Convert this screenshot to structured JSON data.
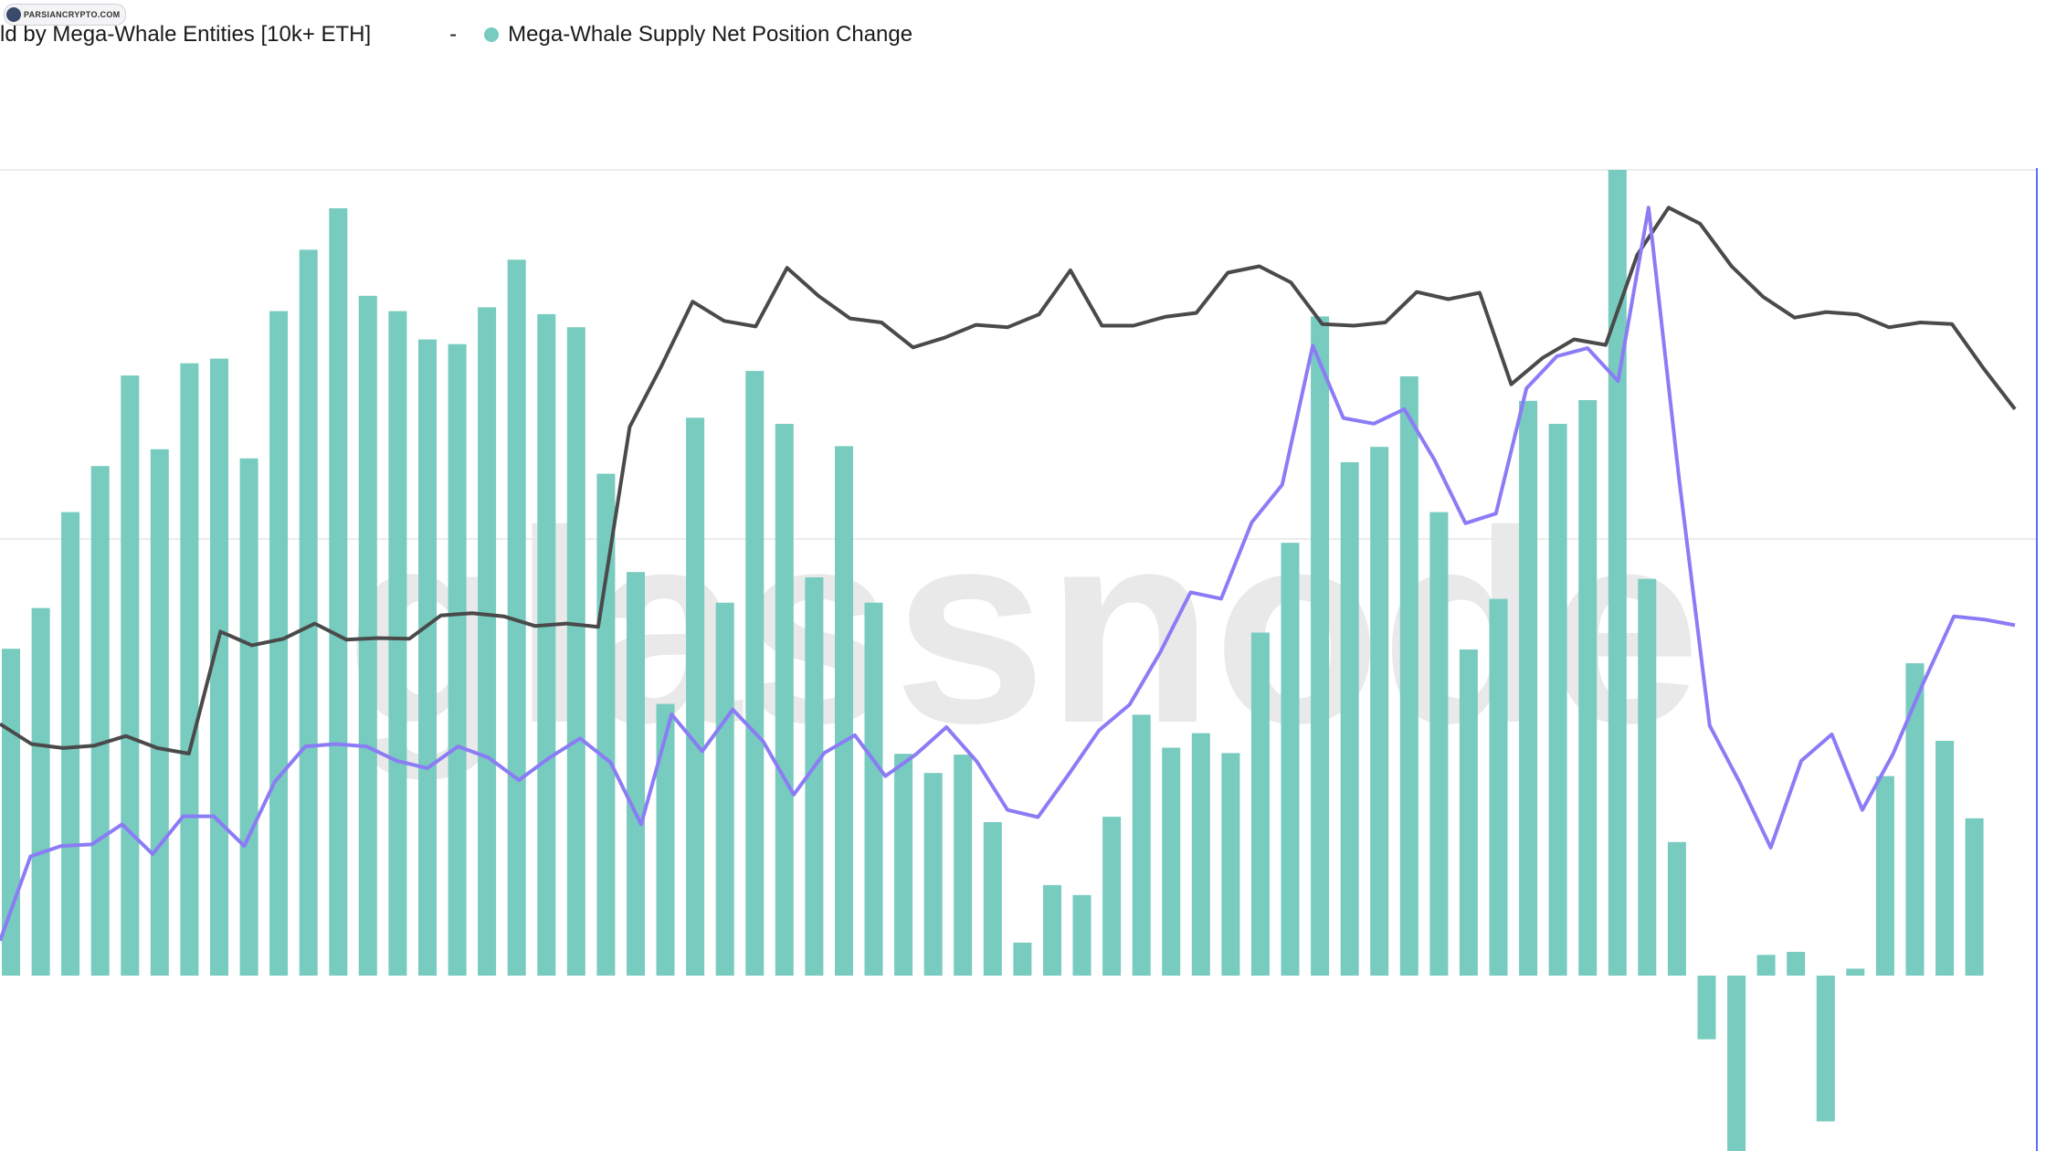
{
  "legend": {
    "series_a": "ld by Mega-Whale Entities [10k+ ETH]",
    "separator": "-",
    "series_b": "Mega-Whale Supply Net Position Change"
  },
  "badge_text": "PARSIANCRYPTO.COM",
  "watermark": "glassnode",
  "colors": {
    "bars": "#77cbbf",
    "black_line": "#4a4a4a",
    "purple_line": "#8b7cf6",
    "grid": "#ececec",
    "right_axis": "#5b6cff"
  },
  "chart_data": {
    "type": "bar",
    "note_axes": "no axis ticks visible; values are relative (bar zero line at 0)",
    "bar_zero": 0,
    "ylim_bars": [
      -230,
      1050
    ],
    "ylim_lines": [
      0,
      100
    ],
    "series": [
      {
        "name": "Mega-Whale Supply Net Position Change",
        "kind": "bar",
        "values": [
          426,
          479,
          604,
          664,
          782,
          686,
          798,
          804,
          674,
          866,
          946,
          1000,
          886,
          866,
          829,
          823,
          871,
          933,
          862,
          845,
          654,
          526,
          354,
          727,
          486,
          788,
          719,
          519,
          690,
          486,
          289,
          264,
          288,
          200,
          43,
          118,
          105,
          207,
          340,
          297,
          316,
          290,
          447,
          564,
          859,
          669,
          689,
          781,
          604,
          425,
          491,
          749,
          719,
          750,
          1050,
          517,
          174,
          -83,
          -231,
          27,
          31,
          -190,
          9,
          260,
          407,
          306,
          205
        ]
      },
      {
        "name": "ld by Mega-Whale Entities [10k+ ETH]",
        "kind": "line",
        "values": [
          31,
          28.5,
          28,
          28.3,
          29.5,
          28,
          27.3,
          42.5,
          40.8,
          41.6,
          43.5,
          41.5,
          41.7,
          41.6,
          44.5,
          44.8,
          44.4,
          43.2,
          43.5,
          43.1,
          68,
          75.5,
          83.6,
          81.2,
          80.5,
          87.8,
          84.3,
          81.5,
          81,
          77.9,
          79.1,
          80.7,
          80.4,
          82,
          87.5,
          80.6,
          80.6,
          81.7,
          82.2,
          87.2,
          88,
          86,
          80.8,
          80.6,
          81,
          84.8,
          83.9,
          84.7,
          73.3,
          76.6,
          78.9,
          78.2,
          89.4,
          95.3,
          93.3,
          88,
          84.2,
          81.6,
          82.3,
          82,
          80.4,
          81,
          80.8,
          75.3,
          70.2
        ]
      },
      {
        "name": "purple line",
        "kind": "line",
        "values": [
          4,
          14.5,
          15.8,
          16,
          18.5,
          14.8,
          19.5,
          19.5,
          15.8,
          23.8,
          28.2,
          28.5,
          28.2,
          26.4,
          25.5,
          28.2,
          26.8,
          24,
          26.8,
          29.2,
          26.2,
          18.5,
          32.2,
          27.6,
          32.8,
          28.8,
          22.2,
          27.4,
          29.6,
          24.5,
          27.2,
          30.6,
          26.3,
          20.3,
          19.4,
          24.7,
          30.2,
          33.4,
          39.9,
          47.4,
          46.6,
          56.1,
          60.8,
          78.1,
          69.1,
          68.4,
          70.2,
          63.8,
          56,
          57.2,
          72.8,
          76.8,
          77.8,
          73.7,
          95.3,
          61.5,
          30.8,
          23.6,
          15.6,
          26.4,
          29.7,
          20.3,
          27.2,
          36.1,
          44.4,
          44,
          43.3
        ]
      }
    ]
  }
}
